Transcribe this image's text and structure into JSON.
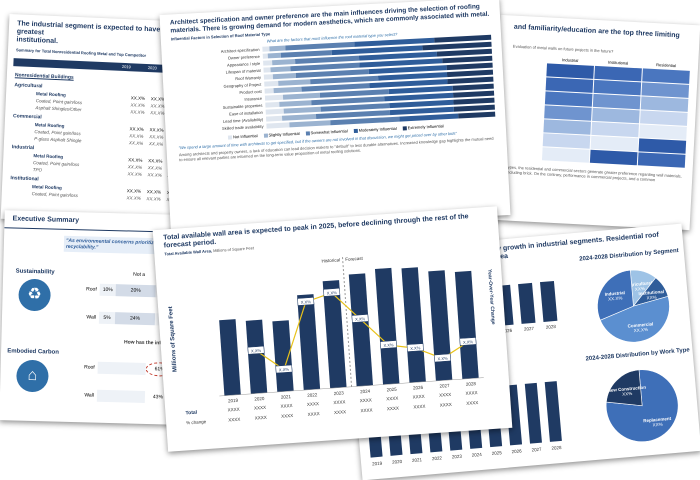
{
  "sheet_table": {
    "title": "The industrial segment is expected to have the greatest",
    "title2": "institutional.",
    "subtitle": "Summary for Total Nonresidential Roofing Metal and Top Competitor",
    "col_headers": [
      "2019",
      "2020",
      "2021"
    ],
    "section": "Nonresidential Buildings",
    "rows": [
      {
        "segment": "Agricultural",
        "label": "Metal Roofing",
        "sub": [
          "Coated, Point gain/loss",
          "Asphalt Shingles/Other"
        ]
      },
      {
        "segment": "Commercial",
        "label": "Metal Roofing",
        "sub": [
          "Coated, Point gain/loss",
          "P-glass Asphalt Shingle"
        ]
      },
      {
        "segment": "Industrial",
        "label": "Metal Roofing",
        "sub": [
          "Coated, Point gain/loss",
          "TPO"
        ]
      },
      {
        "segment": "Institutional",
        "label": "Metal Roofing",
        "sub": [
          "Coated, Point gain/loss"
        ]
      }
    ],
    "cell": "XX.X%"
  },
  "sheet_survey": {
    "title": "Architect specification and owner preference are the main influences driving the selection of roofing materials. There is growing demand for modern aesthetics, which are commonly associated with metal.",
    "chart_title": "Influential Factors in Selection of Roof Material Type",
    "question": "What are the factors that most influence the roof material type you select?",
    "factors": [
      "Architect specification",
      "Owner preference",
      "Appearance / style",
      "Lifespan of material",
      "Roof Warranty",
      "Geography of Project",
      "Product cost",
      "Insurance",
      "Sustainable properties",
      "Ease of installation",
      "Lead time (Availability)",
      "Skilled trade availability"
    ],
    "legend": [
      "Not Influential",
      "Slightly Influential",
      "Somewhat Influential",
      "Moderately Influential",
      "Extremely Influential"
    ],
    "quote": "\"We spend a large amount of time with architects to get specified, but if the owners are not involved in that discussion, we might get priced over by other bids\"",
    "body": "Among architects and property owners, a lack of education can lead decision makers to \"default\" to less durable alternatives. Increased knowledge gap highlights the mutual need to ensure all relevant parties are informed on the long-term value proposition of metal roofing solutions."
  },
  "sheet_heat": {
    "title": "and familiarity/education are the top three limiting",
    "subtitle": "Evaluation of metal walls on future projects in the future?",
    "cols": [
      "Industrial",
      "Institutional",
      "Residential"
    ],
    "footnote": "types, the residential and commercial sectors generate greater preference regarding wall materials, including brick. On the contrary, performance in commercial projects, and a common"
  },
  "sheet_exec": {
    "title": "Executive Summary",
    "quote": "\"As environmental concerns prioritize metal roofing recyclability.\"",
    "sustainability": "Sustainability",
    "embodied": "Embodied Carbon",
    "not_label": "Not a",
    "rows1": [
      {
        "label": "Roof",
        "a": "10%",
        "b": "20%"
      },
      {
        "label": "Wall",
        "a": "5%",
        "b": "24%"
      }
    ],
    "question2": "How has the influenced the",
    "rows2": [
      {
        "label": "Roof",
        "a": "61%"
      },
      {
        "label": "Wall",
        "a": "43%"
      }
    ]
  },
  "sheet_wall": {
    "title": "Total available wall area is expected to peak in 2025, before declining through the rest of the forecast period.",
    "chart_title": "Total Available Wall Area,",
    "chart_sub": "Millions of Square Feet",
    "ylabel": "Millions of Square Feet",
    "ylabel2": "Year-Over-Year Change",
    "historical": "Historical",
    "forecast": "Forecast",
    "total_label": "Total",
    "change_label": "% change",
    "cell": "XXXX",
    "bar_label": "X.X%",
    "chart_data": {
      "type": "bar",
      "categories": [
        "2019",
        "2020",
        "2021",
        "2022",
        "2023",
        "2024",
        "2025",
        "2026",
        "2027",
        "2028"
      ],
      "values": [
        62,
        60,
        58,
        78,
        88,
        92,
        95,
        94,
        90,
        88
      ],
      "line_values": [
        null,
        35,
        18,
        72,
        78,
        55,
        32,
        28,
        18,
        30
      ],
      "ylim": [
        0,
        100
      ]
    }
  },
  "sheet_dist": {
    "title": "by growth in industrial segments. Residential roof area",
    "pie1_title": "2024-2028 Distribution by Segment",
    "pie1": [
      {
        "name": "Agricultural",
        "value": 12,
        "color": "#9ec3e6"
      },
      {
        "name": "Institutional",
        "value": 10,
        "color": "#2f5d9a"
      },
      {
        "name": "Commercial",
        "value": 48,
        "color": "#5b8fd0"
      },
      {
        "name": "Industrial",
        "value": 30,
        "color": "#3e6fb8"
      }
    ],
    "pie1_labels": {
      "Agricultural": "XX%",
      "Institutional": "XX%",
      "Commercial": "XX.X%",
      "Industrial": "XX.X%"
    },
    "pie2_title": "2024-2028 Distribution by Work Type",
    "pie2": [
      {
        "name": "Replacement",
        "value": 78,
        "color": "#3e6fb8"
      },
      {
        "name": "New Construction",
        "value": 22,
        "color": "#1f3a63"
      }
    ],
    "pie2_labels": {
      "Replacement": "XX%",
      "New Construction": "XX%"
    },
    "years": [
      "2019",
      "2020",
      "2021",
      "2022",
      "2023",
      "2024",
      "2025",
      "2026",
      "2027",
      "2028"
    ],
    "years_short": [
      "2026",
      "2027",
      "2028"
    ]
  }
}
